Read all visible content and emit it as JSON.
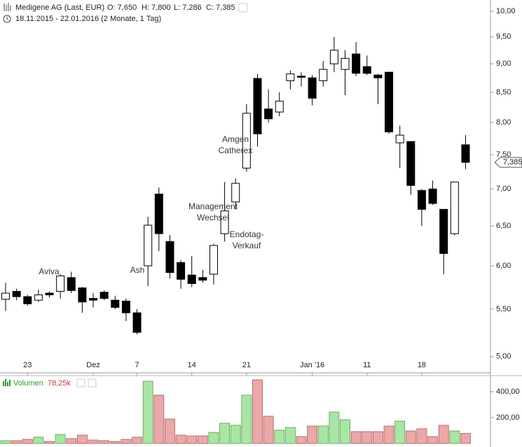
{
  "header": {
    "instrument": "Medigene AG (Last, EUR)",
    "ohlc": [
      "O: 7,650",
      "H: 7,800",
      "L: 7,286",
      "C: 7,385"
    ],
    "period": "18.11.2015 - 22.01.2016 (2 Monate, 1 Tag)"
  },
  "chart_data": {
    "type": "candlestick",
    "categories": [
      null,
      null,
      "23",
      null,
      null,
      null,
      null,
      null,
      "Dez",
      null,
      null,
      null,
      "7",
      null,
      null,
      null,
      null,
      "14",
      null,
      null,
      null,
      null,
      "21",
      null,
      null,
      null,
      null,
      null,
      "Jan '16",
      null,
      null,
      null,
      null,
      "11",
      null,
      null,
      null,
      null,
      "18",
      null,
      null,
      null,
      null
    ],
    "open": [
      5.61,
      5.7,
      5.64,
      5.6,
      5.68,
      5.7,
      5.86,
      5.74,
      5.62,
      5.69,
      5.6,
      5.59,
      5.46,
      6.0,
      6.93,
      6.3,
      6.04,
      5.89,
      5.86,
      5.9,
      6.4,
      6.82,
      7.3,
      8.74,
      8.22,
      8.17,
      8.7,
      8.78,
      8.75,
      8.7,
      9.0,
      8.9,
      9.18,
      8.95,
      8.8,
      8.85,
      7.68,
      7.7,
      6.98,
      7.0,
      6.72,
      6.4,
      7.65
    ],
    "high": [
      5.8,
      5.73,
      5.66,
      5.72,
      5.7,
      5.9,
      5.93,
      5.75,
      5.68,
      5.71,
      5.65,
      5.62,
      5.5,
      6.62,
      7.02,
      6.38,
      6.07,
      6.12,
      5.95,
      6.27,
      7.1,
      7.15,
      8.3,
      8.82,
      8.55,
      8.5,
      8.88,
      8.85,
      8.8,
      9.05,
      9.5,
      9.25,
      9.4,
      9.15,
      8.82,
      8.85,
      7.95,
      7.7,
      7.0,
      7.12,
      6.72,
      7.1,
      7.8
    ],
    "low": [
      5.48,
      5.6,
      5.54,
      5.58,
      5.63,
      5.62,
      5.68,
      5.46,
      5.52,
      5.6,
      5.5,
      5.37,
      5.23,
      5.76,
      6.18,
      5.85,
      5.73,
      5.75,
      5.8,
      5.78,
      6.3,
      6.72,
      7.25,
      7.62,
      8.0,
      8.1,
      8.55,
      8.6,
      8.28,
      8.6,
      8.85,
      8.45,
      8.78,
      8.8,
      8.3,
      7.82,
      7.3,
      6.92,
      6.5,
      6.78,
      5.9,
      6.38,
      7.286
    ],
    "close": [
      5.68,
      5.64,
      5.56,
      5.66,
      5.66,
      5.88,
      5.71,
      5.58,
      5.6,
      5.62,
      5.52,
      5.46,
      5.25,
      6.51,
      6.4,
      5.92,
      5.84,
      5.79,
      5.83,
      6.25,
      6.7,
      7.08,
      8.15,
      7.82,
      8.06,
      8.35,
      8.82,
      8.76,
      8.4,
      8.9,
      9.25,
      9.1,
      8.83,
      8.83,
      8.75,
      7.85,
      7.8,
      7.05,
      6.72,
      6.8,
      6.15,
      7.1,
      7.385
    ],
    "up_color": "#ffffff",
    "down_color": "#000000",
    "last_label": "7,385",
    "log_scale": true,
    "ylim": [
      4.84,
      10.23
    ],
    "yticks": [
      {
        "value": 5,
        "label": "5,00"
      },
      {
        "value": 5.5,
        "label": "5,50"
      },
      {
        "value": 6,
        "label": "6,00"
      },
      {
        "value": 6.5,
        "label": "6,50"
      },
      {
        "value": 7,
        "label": "7,00"
      },
      {
        "value": 7.5,
        "label": "7,50"
      },
      {
        "value": 8,
        "label": "8,00"
      },
      {
        "value": 8.5,
        "label": "8,50"
      },
      {
        "value": 9,
        "label": "9,00"
      },
      {
        "value": 9.5,
        "label": "9,50"
      },
      {
        "value": 10,
        "label": "10,00"
      }
    ],
    "annotations": [
      [
        "Aviva"
      ],
      [
        "Ash"
      ],
      [
        "Management",
        "Wechsel"
      ],
      [
        "Amgen",
        "Catherex"
      ],
      [
        "Endotag-",
        "Verkauf"
      ]
    ],
    "volume": {
      "name": "Volumen",
      "value_label": "78,25k",
      "values": [
        22000,
        22000,
        32000,
        49000,
        16000,
        70000,
        38000,
        65000,
        27000,
        22000,
        16000,
        32000,
        49000,
        481000,
        373000,
        189000,
        65000,
        59000,
        59000,
        86000,
        157000,
        141000,
        373000,
        492000,
        211000,
        103000,
        124000,
        54000,
        135000,
        135000,
        243000,
        184000,
        92000,
        92000,
        92000,
        135000,
        173000,
        97000,
        114000,
        54000,
        141000,
        97000,
        78250
      ],
      "up_color": "#a9e6a3",
      "down_color": "#eba8a8",
      "ylim": [
        0,
        524000
      ],
      "yticks": [
        {
          "value": 200000,
          "label": "200,00"
        },
        {
          "value": 400000,
          "label": "400,00"
        }
      ]
    }
  }
}
